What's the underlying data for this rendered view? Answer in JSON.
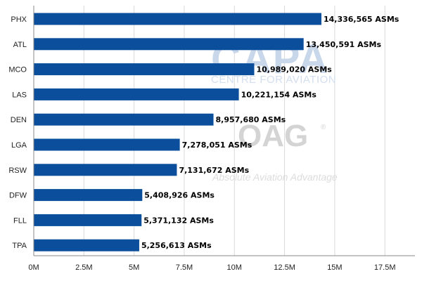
{
  "chart_data": {
    "type": "bar",
    "orientation": "horizontal",
    "categories": [
      "PHX",
      "ATL",
      "MCO",
      "LAS",
      "DEN",
      "LGA",
      "RSW",
      "DFW",
      "FLL",
      "TPA"
    ],
    "values": [
      14336565,
      13450591,
      10989020,
      10221154,
      8957680,
      7278051,
      7131672,
      5408926,
      5371132,
      5256613
    ],
    "value_labels": [
      "14,336,565 ASMs",
      "13,450,591 ASMs",
      "10,989,020 ASMs",
      "10,221,154 ASMs",
      "8,957,680 ASMs",
      "7,278,051 ASMs",
      "7,131,672 ASMs",
      "5,408,926 ASMs",
      "5,371,132 ASMs",
      "5,256,613 ASMs"
    ],
    "xticks": [
      0,
      2500000,
      5000000,
      7500000,
      10000000,
      12500000,
      15000000,
      17500000
    ],
    "xtick_labels": [
      "0M",
      "2.5M",
      "5M",
      "7.5M",
      "10M",
      "12.5M",
      "15M",
      "17.5M"
    ],
    "xlim": [
      0,
      19000000
    ],
    "grid": "vertical",
    "bar_color": "#0b4f9c",
    "grid_color": "#d9d9d9"
  },
  "watermarks": {
    "capa_logo": "CAPA",
    "capa_tagline": "CENTRE FOR AVIATION",
    "oag_logo": "OAG",
    "oag_registered": "®",
    "oag_tagline": "Absolute Aviation Advantage"
  }
}
